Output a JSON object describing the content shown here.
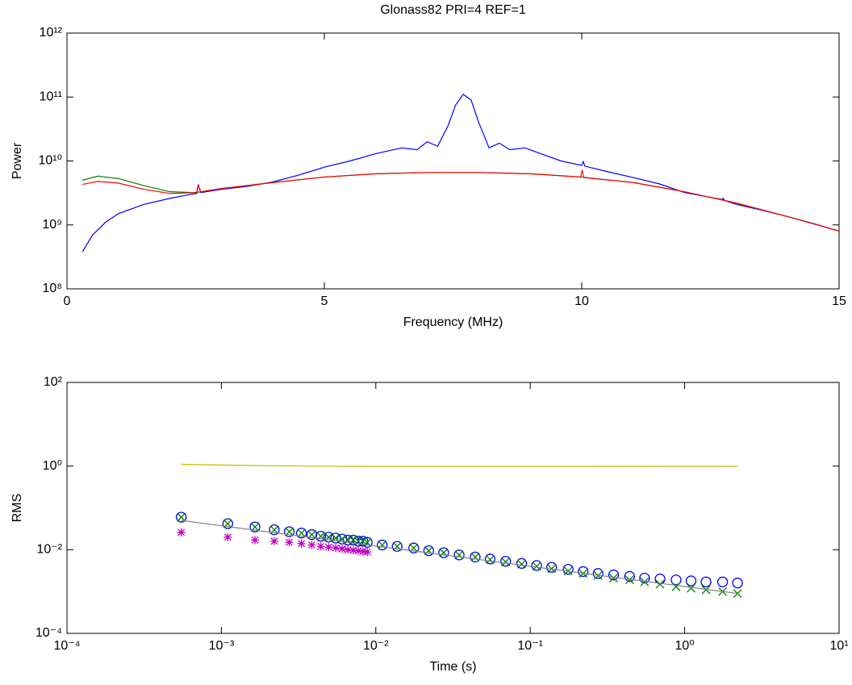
{
  "chart_data": [
    {
      "type": "line",
      "title": "Glonass82 PRI=4 REF=1",
      "xlabel": "Frequency  (MHz)",
      "ylabel": "Power",
      "xlim": [
        0,
        15
      ],
      "xticks": [
        0,
        5,
        10,
        15
      ],
      "ylim": [
        100000000.0,
        1000000000000.0
      ],
      "log_y": true,
      "yticks": [
        {
          "value": 100000000.0,
          "label": "10⁸"
        },
        {
          "value": 1000000000.0,
          "label": "10⁹"
        },
        {
          "value": 10000000000.0,
          "label": "10¹⁰"
        },
        {
          "value": 100000000000.0,
          "label": "10¹¹"
        },
        {
          "value": 1000000000000.0,
          "label": "10¹²"
        }
      ],
      "series": [
        {
          "color": "#0000ff",
          "marker": "line",
          "x": [
            0.3,
            0.5,
            0.75,
            1,
            1.5,
            2,
            2.4,
            2.52,
            2.55,
            2.6,
            3,
            3.5,
            4,
            4.5,
            5,
            5.5,
            6,
            6.5,
            6.8,
            7,
            7.2,
            7.4,
            7.55,
            7.7,
            7.85,
            8.0,
            8.2,
            8.4,
            8.6,
            8.9,
            9.2,
            9.6,
            10,
            10.03,
            10.06,
            10.5,
            11,
            11.5,
            12,
            12.5,
            12.72,
            12.75,
            12.78,
            13,
            13.5,
            14,
            14.5,
            15
          ],
          "values": [
            380000000.0,
            700000000.0,
            1100000000.0,
            1500000000.0,
            2100000000.0,
            2600000000.0,
            3000000000.0,
            3100000000.0,
            4300000000.0,
            3200000000.0,
            3600000000.0,
            4000000000.0,
            4700000000.0,
            6000000000.0,
            8000000000.0,
            10000000000.0,
            13000000000.0,
            16000000000.0,
            15000000000.0,
            20000000000.0,
            17000000000.0,
            35000000000.0,
            75000000000.0,
            110000000000.0,
            90000000000.0,
            40000000000.0,
            16000000000.0,
            19000000000.0,
            15000000000.0,
            16000000000.0,
            13000000000.0,
            10000000000.0,
            8500000000.0,
            9800000000.0,
            8300000000.0,
            6800000000.0,
            5500000000.0,
            4400000000.0,
            3200000000.0,
            2700000000.0,
            2500000000.0,
            2600000000.0,
            2400000000.0,
            2100000000.0,
            1700000000.0,
            1350000000.0,
            1050000000.0,
            800000000.0
          ]
        },
        {
          "color": "#008000",
          "marker": "line",
          "x": [
            0.3,
            0.6,
            1,
            1.5,
            2,
            2.5,
            3,
            4,
            5,
            6,
            7,
            8,
            9,
            10,
            11,
            12,
            13,
            14,
            15
          ],
          "values": [
            5000000000.0,
            5800000000.0,
            5300000000.0,
            4100000000.0,
            3300000000.0,
            3200000000.0,
            3700000000.0,
            4600000000.0,
            5600000000.0,
            6300000000.0,
            6600000000.0,
            6600000000.0,
            6300000000.0,
            5600000000.0,
            4600000000.0,
            3300000000.0,
            2200000000.0,
            1350000000.0,
            800000000.0
          ]
        },
        {
          "color": "#ff0000",
          "marker": "line",
          "x": [
            0.3,
            0.6,
            1,
            1.5,
            2,
            2.5,
            2.52,
            2.55,
            2.6,
            3,
            4,
            5,
            6,
            7,
            8,
            9,
            9.98,
            10.01,
            10.04,
            11,
            12,
            13,
            14,
            15
          ],
          "values": [
            4300000000.0,
            4800000000.0,
            4500000000.0,
            3600000000.0,
            3100000000.0,
            3200000000.0,
            3250000000.0,
            4200000000.0,
            3300000000.0,
            3700000000.0,
            4600000000.0,
            5600000000.0,
            6300000000.0,
            6600000000.0,
            6600000000.0,
            6300000000.0,
            5600000000.0,
            7200000000.0,
            5500000000.0,
            4600000000.0,
            3300000000.0,
            2200000000.0,
            1350000000.0,
            800000000.0
          ]
        }
      ]
    },
    {
      "type": "scatter",
      "xlabel": "Time (s)",
      "ylabel": "RMS",
      "xlim": [
        0.0001,
        10
      ],
      "log_x": true,
      "xticks": [
        {
          "value": 0.0001,
          "label": "10⁻⁴"
        },
        {
          "value": 0.001,
          "label": "10⁻³"
        },
        {
          "value": 0.01,
          "label": "10⁻²"
        },
        {
          "value": 0.1,
          "label": "10⁻¹"
        },
        {
          "value": 1,
          "label": "10⁰"
        },
        {
          "value": 10,
          "label": "10¹"
        }
      ],
      "ylim": [
        0.0001,
        100
      ],
      "log_y": true,
      "yticks": [
        {
          "value": 0.0001,
          "label": "10⁻⁴"
        },
        {
          "value": 0.01,
          "label": "10⁻²"
        },
        {
          "value": 1,
          "label": "10⁰"
        },
        {
          "value": 100,
          "label": "10²"
        }
      ],
      "series": [
        {
          "color": "#bfbf00",
          "marker": "line",
          "x": [
            0.00055,
            0.002,
            0.01,
            0.1,
            1,
            2.2
          ],
          "values": [
            1.1,
            1.02,
            0.98,
            0.98,
            0.99,
            0.99
          ]
        },
        {
          "color": "#0000ff",
          "marker": "o",
          "x": [
            0.00055,
            0.0011,
            0.00165,
            0.0022,
            0.00275,
            0.0033,
            0.00385,
            0.0044,
            0.00495,
            0.0055,
            0.00605,
            0.0066,
            0.00715,
            0.0077,
            0.00825,
            0.0088,
            0.011,
            0.01375,
            0.0176,
            0.022,
            0.0275,
            0.03465,
            0.044,
            0.055,
            0.0693,
            0.088,
            0.11,
            0.1375,
            0.176,
            0.22,
            0.275,
            0.3465,
            0.44,
            0.55,
            0.693,
            0.88,
            1.1,
            1.375,
            1.76,
            2.2
          ],
          "values": [
            0.06,
            0.042,
            0.035,
            0.03,
            0.027,
            0.025,
            0.023,
            0.021,
            0.02,
            0.019,
            0.018,
            0.017,
            0.017,
            0.016,
            0.016,
            0.015,
            0.013,
            0.012,
            0.011,
            0.0095,
            0.0085,
            0.0075,
            0.0067,
            0.006,
            0.0053,
            0.0047,
            0.0042,
            0.0038,
            0.0034,
            0.003,
            0.0027,
            0.0025,
            0.0023,
            0.0021,
            0.002,
            0.0019,
            0.0018,
            0.0017,
            0.0017,
            0.0016
          ]
        },
        {
          "color": "#008000",
          "marker": "x",
          "x": [
            0.00055,
            0.0011,
            0.00165,
            0.0022,
            0.00275,
            0.0033,
            0.00385,
            0.0044,
            0.00495,
            0.0055,
            0.00605,
            0.0066,
            0.00715,
            0.0077,
            0.00825,
            0.0088,
            0.011,
            0.01375,
            0.0176,
            0.022,
            0.0275,
            0.03465,
            0.044,
            0.055,
            0.0693,
            0.088,
            0.11,
            0.1375,
            0.176,
            0.22,
            0.275,
            0.3465,
            0.44,
            0.55,
            0.693,
            0.88,
            1.1,
            1.375,
            1.76,
            2.2
          ],
          "values": [
            0.06,
            0.042,
            0.035,
            0.03,
            0.027,
            0.025,
            0.023,
            0.021,
            0.02,
            0.019,
            0.018,
            0.017,
            0.017,
            0.016,
            0.016,
            0.015,
            0.013,
            0.012,
            0.011,
            0.0095,
            0.0085,
            0.0075,
            0.0067,
            0.0058,
            0.0051,
            0.0045,
            0.004,
            0.0035,
            0.0031,
            0.0027,
            0.0024,
            0.0021,
            0.0019,
            0.0017,
            0.0015,
            0.0013,
            0.0012,
            0.0011,
            0.001,
            0.0009
          ]
        },
        {
          "color": "#bf00bf",
          "marker": "*",
          "x": [
            0.00055,
            0.0011,
            0.00165,
            0.0022,
            0.00275,
            0.0033,
            0.00385,
            0.0044,
            0.00495,
            0.0055,
            0.00605,
            0.0066,
            0.00715,
            0.0077,
            0.00825,
            0.0088
          ],
          "values": [
            0.026,
            0.02,
            0.017,
            0.016,
            0.015,
            0.014,
            0.013,
            0.012,
            0.0115,
            0.011,
            0.0105,
            0.01,
            0.0097,
            0.0094,
            0.0091,
            0.0088
          ]
        },
        {
          "color": "#808080",
          "marker": "line",
          "x": [
            0.00055,
            2.2
          ],
          "values": [
            0.05,
            0.0009
          ]
        }
      ]
    }
  ]
}
